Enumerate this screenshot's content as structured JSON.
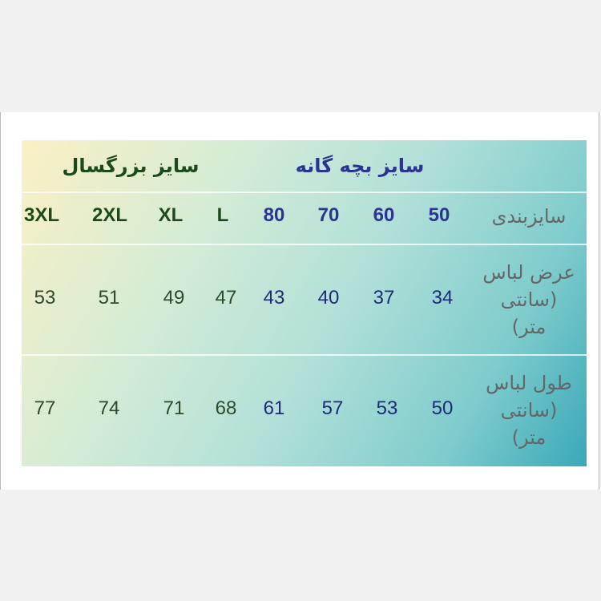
{
  "groups": {
    "kids": "سایز بچه گانه",
    "adults": "سایز بزرگسال"
  },
  "row_labels": {
    "size": "سایزبندی",
    "width": "عرض لباس (سانتی متر)",
    "length": "طول لباس (سانتی متر)"
  },
  "sizes": [
    "50",
    "60",
    "70",
    "80",
    "L",
    "XL",
    "2XL",
    "3XL"
  ],
  "width_cm": [
    "34",
    "37",
    "40",
    "43",
    "47",
    "49",
    "51",
    "53"
  ],
  "length_cm": [
    "50",
    "53",
    "57",
    "61",
    "68",
    "71",
    "74",
    "77"
  ],
  "colors": {
    "kids_text": "#2b3394",
    "adults_text": "#1d4a1d",
    "label_text": "#666666",
    "gradient_start": "#fbf0c4",
    "gradient_end": "#3aa8b8"
  }
}
